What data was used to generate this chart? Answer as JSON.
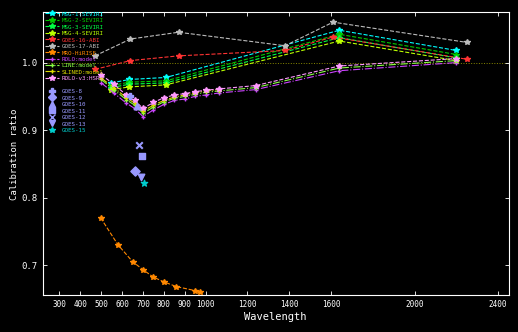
{
  "background_color": "#000000",
  "text_color": "#ffffff",
  "xlabel": "Wavelength",
  "ylabel": "Calibration ratio",
  "xlim": [
    220,
    2450
  ],
  "ylim": [
    0.655,
    1.075
  ],
  "yticks": [
    0.7,
    0.8,
    0.9,
    1.0
  ],
  "xticks": [
    300,
    400,
    500,
    600,
    700,
    800,
    900,
    1000,
    1200,
    1400,
    1600,
    2000,
    2400
  ],
  "hline_y": 1.0,
  "hline_color": "#aaaa00",
  "series": [
    {
      "label": "MSG-1-SEVIRI",
      "color": "#00ffff",
      "linestyle": "--",
      "marker": "*",
      "ms": 4,
      "x": [
        549,
        635,
        810,
        1640,
        2200
      ],
      "y": [
        0.97,
        0.975,
        0.978,
        1.048,
        1.018
      ]
    },
    {
      "label": "MSG-2-SEVIRI",
      "color": "#00cc00",
      "linestyle": "--",
      "marker": "*",
      "ms": 4,
      "x": [
        549,
        635,
        810,
        1640,
        2200
      ],
      "y": [
        0.966,
        0.971,
        0.973,
        1.042,
        1.012
      ]
    },
    {
      "label": "MSG-3-SEVIRI",
      "color": "#00ff44",
      "linestyle": "--",
      "marker": "*",
      "ms": 4,
      "x": [
        549,
        635,
        810,
        1640,
        2200
      ],
      "y": [
        0.963,
        0.968,
        0.97,
        1.037,
        1.007
      ]
    },
    {
      "label": "MSG-4-SEVIRI",
      "color": "#bbff00",
      "linestyle": "--",
      "marker": "*",
      "ms": 4,
      "x": [
        549,
        635,
        810,
        1640,
        2200
      ],
      "y": [
        0.96,
        0.964,
        0.967,
        1.032,
        1.003
      ]
    },
    {
      "label": "GOES-16-ABI",
      "color": "#ff3333",
      "linestyle": "--",
      "marker": "*",
      "ms": 4,
      "x": [
        470,
        640,
        870,
        1380,
        1610,
        2250
      ],
      "y": [
        0.99,
        1.003,
        1.01,
        1.018,
        1.038,
        1.005
      ]
    },
    {
      "label": "GOES-17-ABI",
      "color": "#bbbbbb",
      "linestyle": "--",
      "marker": "*",
      "ms": 4,
      "x": [
        470,
        640,
        870,
        1380,
        1610,
        2250
      ],
      "y": [
        1.01,
        1.035,
        1.045,
        1.025,
        1.06,
        1.03
      ]
    },
    {
      "label": "MRO-HiRISE",
      "color": "#ff8800",
      "linestyle": "--",
      "marker": "*",
      "ms": 4,
      "x": [
        497,
        580,
        650,
        700,
        750,
        800,
        860,
        950,
        975
      ],
      "y": [
        0.77,
        0.73,
        0.705,
        0.693,
        0.682,
        0.675,
        0.668,
        0.662,
        0.66
      ]
    },
    {
      "label": "ROLO:model",
      "color": "#cc44ff",
      "linestyle": "-.",
      "marker": "+",
      "ms": 3,
      "x": [
        500,
        560,
        620,
        660,
        700,
        750,
        800,
        850,
        900,
        950,
        1000,
        1064,
        1240,
        1640,
        2200
      ],
      "y": [
        0.97,
        0.955,
        0.94,
        0.932,
        0.92,
        0.93,
        0.938,
        0.944,
        0.946,
        0.95,
        0.952,
        0.955,
        0.96,
        0.988,
        1.0
      ]
    },
    {
      "label": "LINE:model",
      "color": "#88ff44",
      "linestyle": "-.",
      "marker": "+",
      "ms": 3,
      "x": [
        500,
        560,
        620,
        660,
        700,
        750,
        800,
        850,
        900,
        950,
        1000,
        1064,
        1240,
        1640,
        2200
      ],
      "y": [
        0.975,
        0.96,
        0.945,
        0.937,
        0.925,
        0.934,
        0.942,
        0.947,
        0.95,
        0.953,
        0.956,
        0.958,
        0.963,
        0.992,
        1.003
      ]
    },
    {
      "label": "SLINED:model",
      "color": "#dddd00",
      "linestyle": "-.",
      "marker": "+",
      "ms": 3,
      "x": [
        500,
        560,
        620,
        660,
        700,
        750,
        800,
        850,
        900,
        950,
        1000,
        1064
      ],
      "y": [
        0.977,
        0.963,
        0.948,
        0.94,
        0.928,
        0.937,
        0.944,
        0.949,
        0.952,
        0.955,
        0.958,
        0.96
      ]
    },
    {
      "label": "ROLO-v3:HSRS",
      "color": "#ff99ff",
      "linestyle": "--",
      "marker": "*",
      "ms": 4,
      "x": [
        500,
        560,
        620,
        660,
        700,
        750,
        800,
        850,
        900,
        950,
        1000,
        1064,
        1240,
        1640,
        2200
      ],
      "y": [
        0.982,
        0.968,
        0.952,
        0.944,
        0.932,
        0.941,
        0.948,
        0.952,
        0.954,
        0.957,
        0.959,
        0.961,
        0.966,
        0.995,
        1.006
      ]
    }
  ],
  "scatter_series": [
    {
      "label": "GOES-8",
      "color": "#9999ff",
      "marker": "P",
      "x": [
        636
      ],
      "y": [
        0.951
      ]
    },
    {
      "label": "GOES-9",
      "color": "#9999ff",
      "marker": "D",
      "x": [
        660
      ],
      "y": [
        0.84
      ]
    },
    {
      "label": "GOES-10",
      "color": "#9999ff",
      "marker": "^",
      "x": [
        670
      ],
      "y": [
        0.935
      ]
    },
    {
      "label": "GOES-11",
      "color": "#9999ff",
      "marker": "s",
      "x": [
        695
      ],
      "y": [
        0.862
      ]
    },
    {
      "label": "GOES-12",
      "color": "#9999ff",
      "marker": "x",
      "x": [
        680
      ],
      "y": [
        0.878
      ]
    },
    {
      "label": "GOES-13",
      "color": "#9999ff",
      "marker": "v",
      "x": [
        690
      ],
      "y": [
        0.83
      ]
    },
    {
      "label": "GOES-15",
      "color": "#00cccc",
      "marker": "*",
      "x": [
        704
      ],
      "y": [
        0.822
      ]
    }
  ]
}
